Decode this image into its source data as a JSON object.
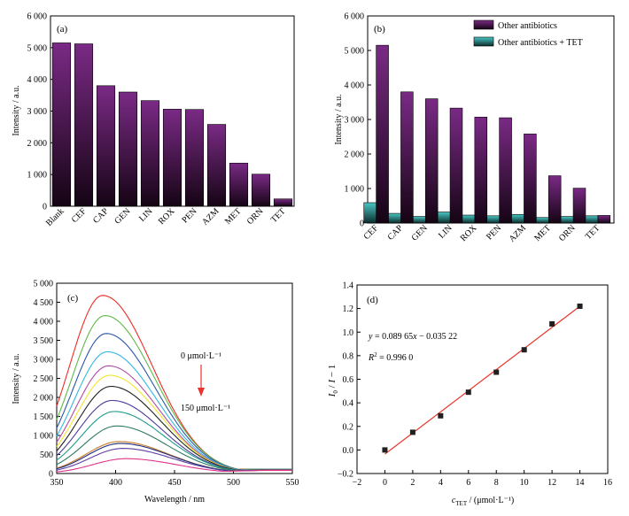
{
  "colors": {
    "purple": "#7a2a85",
    "purple_dark": "#150414",
    "teal": "#49c7c4",
    "teal_dark": "#0b2c2c",
    "fit_line": "#e8342c",
    "arrow": "#e8342c",
    "marker": "#202020"
  },
  "chart_data": [
    {
      "panel": "(a)",
      "type": "bar",
      "ylabel": "Intensity / a.u.",
      "ylim": [
        0,
        6000
      ],
      "yticks": [
        "0",
        "1 000",
        "2 000",
        "3 000",
        "4 000",
        "5 000",
        "6 000"
      ],
      "categories": [
        "Blank",
        "CEF",
        "CAP",
        "GEN",
        "LIN",
        "ROX",
        "PEN",
        "AZM",
        "MET",
        "ORN",
        "TET"
      ],
      "values": [
        5150,
        5120,
        3800,
        3600,
        3330,
        3060,
        3050,
        2580,
        1360,
        1010,
        230
      ]
    },
    {
      "panel": "(b)",
      "type": "bar",
      "ylabel": "Intensity / a.u.",
      "ylim": [
        0,
        6000
      ],
      "yticks": [
        "0",
        "1 000",
        "2 000",
        "3 000",
        "4 000",
        "5 000",
        "6 000"
      ],
      "legend_position": "top-right",
      "categories": [
        "CEF",
        "CAP",
        "GEN",
        "LIN",
        "ROX",
        "PEN",
        "AZM",
        "MET",
        "ORN",
        "TET"
      ],
      "series": [
        {
          "name": "Other antibiotics",
          "values": [
            5150,
            3800,
            3600,
            3330,
            3070,
            3050,
            2580,
            1370,
            1010,
            220
          ]
        },
        {
          "name": "Other antibiotics + TET",
          "values": [
            590,
            280,
            190,
            320,
            230,
            210,
            250,
            160,
            190,
            210
          ]
        }
      ]
    },
    {
      "panel": "(c)",
      "type": "line",
      "xlabel": "Wavelength / nm",
      "ylabel": "Intensity / a.u.",
      "xlim": [
        350,
        550
      ],
      "ylim": [
        0,
        5000
      ],
      "xticks": [
        "350",
        "400",
        "450",
        "500",
        "550"
      ],
      "yticks": [
        "0",
        "500",
        "1 000",
        "1 500",
        "2 000",
        "2 500",
        "3 000",
        "3 500",
        "4 000",
        "4 500",
        "5 000"
      ],
      "annotation_top": "0 μmol·L⁻¹",
      "annotation_bottom": "150 μmol·L⁻¹",
      "series": [
        {
          "peak_x": 389,
          "peak_y": 4680,
          "color": "#ee2b24"
        },
        {
          "peak_x": 391,
          "peak_y": 4150,
          "color": "#5fb848"
        },
        {
          "peak_x": 392,
          "peak_y": 3680,
          "color": "#2a56a8"
        },
        {
          "peak_x": 393,
          "peak_y": 3200,
          "color": "#34b7e3"
        },
        {
          "peak_x": 394,
          "peak_y": 2830,
          "color": "#b34ba6"
        },
        {
          "peak_x": 395,
          "peak_y": 2580,
          "color": "#f0e62e"
        },
        {
          "peak_x": 396,
          "peak_y": 2290,
          "color": "#222222"
        },
        {
          "peak_x": 397,
          "peak_y": 1920,
          "color": "#4b3a9a"
        },
        {
          "peak_x": 399,
          "peak_y": 1630,
          "color": "#1e9e8a"
        },
        {
          "peak_x": 401,
          "peak_y": 1250,
          "color": "#2d7a5f"
        },
        {
          "peak_x": 403,
          "peak_y": 840,
          "color": "#c97a2a"
        },
        {
          "peak_x": 404,
          "peak_y": 790,
          "color": "#1f2d7a"
        },
        {
          "peak_x": 406,
          "peak_y": 660,
          "color": "#5b3fa0"
        },
        {
          "peak_x": 409,
          "peak_y": 390,
          "color": "#e0338a"
        }
      ]
    },
    {
      "panel": "(d)",
      "type": "scatter",
      "xlabel_main": "c",
      "xlabel_sub": "TET",
      "xlabel_rest": " / (μmol·L⁻¹)",
      "ylabel_i0": "I",
      "ylabel_i0_sub": "0",
      "ylabel_mid": " / ",
      "ylabel_i": "I",
      "ylabel_rest": " − 1",
      "xlim": [
        -2,
        16
      ],
      "ylim": [
        -0.2,
        1.4
      ],
      "xticks": [
        "−2",
        "0",
        "2",
        "4",
        "6",
        "8",
        "10",
        "12",
        "14",
        "16"
      ],
      "yticks": [
        "−0.2",
        "0.0",
        "0.2",
        "0.4",
        "0.6",
        "0.8",
        "1.0",
        "1.2",
        "1.4"
      ],
      "equation_y": "y",
      "equation_rest": " = 0.089 65",
      "equation_x": "x",
      "equation_tail": " − 0.035 22",
      "r2_label": "R",
      "r2_rest": " = 0.996 0",
      "x": [
        0,
        2,
        4,
        6,
        8,
        10,
        12,
        14
      ],
      "y": [
        0.0,
        0.15,
        0.29,
        0.49,
        0.66,
        0.85,
        1.07,
        1.22
      ],
      "fit": {
        "slope": 0.08965,
        "intercept": -0.03522,
        "x_range": [
          0,
          14
        ]
      }
    }
  ]
}
